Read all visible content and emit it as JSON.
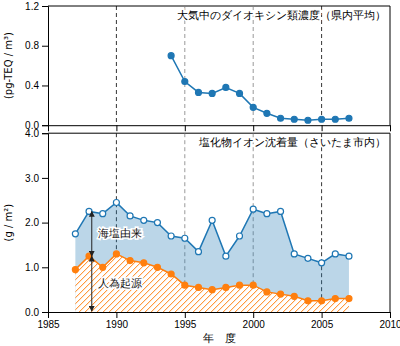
{
  "chart_data": [
    {
      "type": "line",
      "title": "大気中のダイオキシン類濃度（県内平均）",
      "y_label": "(pg-TEQ / m³)",
      "x": [
        1994,
        1995,
        1996,
        1997,
        1998,
        1999,
        2000,
        2001,
        2002,
        2003,
        2004,
        2005,
        2006,
        2007
      ],
      "values": [
        0.7,
        0.44,
        0.33,
        0.32,
        0.38,
        0.32,
        0.18,
        0.12,
        0.07,
        0.06,
        0.05,
        0.06,
        0.06,
        0.07
      ],
      "marker": "circle",
      "xlim": [
        1985,
        2010
      ],
      "xticks": [
        1985,
        1990,
        1995,
        2000,
        2005,
        2010
      ],
      "ylim": [
        0,
        1.2
      ],
      "yticks": [
        {
          "value": 0,
          "label": "0.0"
        },
        {
          "value": 0.4,
          "label": "0.4"
        },
        {
          "value": 0.8,
          "label": "0.8"
        },
        {
          "value": 1.2,
          "label": "1.2"
        }
      ],
      "tick_labels": "y",
      "vlines": [
        {
          "x": 1990,
          "color": "black"
        },
        {
          "x": 2005,
          "color": "black"
        },
        {
          "x": 1995,
          "color": "gray"
        },
        {
          "x": 2000,
          "color": "gray"
        }
      ]
    },
    {
      "type": "area",
      "title": "塩化物イオン沈着量（さいたま市内）",
      "x_label": "年　度",
      "y_label": "(g / m²)",
      "x": [
        1987,
        1988,
        1989,
        1990,
        1991,
        1992,
        1993,
        1994,
        1995,
        1996,
        1997,
        1998,
        1999,
        2000,
        2001,
        2002,
        2003,
        2004,
        2005,
        2006,
        2007
      ],
      "series": [
        {
          "values": [
            1.75,
            2.25,
            2.2,
            2.45,
            2.15,
            2.05,
            2.0,
            1.7,
            1.65,
            1.35,
            2.05,
            1.25,
            1.7,
            2.3,
            2.2,
            2.25,
            1.3,
            1.2,
            1.1,
            1.3,
            1.25
          ],
          "marker": "open-circle"
        },
        {
          "values": [
            0.95,
            1.25,
            1.0,
            1.3,
            1.15,
            1.1,
            1.0,
            0.85,
            0.6,
            0.55,
            0.5,
            0.55,
            0.6,
            0.6,
            0.45,
            0.4,
            0.35,
            0.25,
            0.25,
            0.3,
            0.3
          ],
          "marker": "circle"
        }
      ],
      "xlim": [
        1985,
        2010
      ],
      "xticks": [
        1985,
        1990,
        1995,
        2000,
        2005,
        2010
      ],
      "ylim": [
        0,
        4.0
      ],
      "yticks": [
        {
          "value": 0,
          "label": "0.0"
        },
        {
          "value": 1.0,
          "label": "1.0"
        },
        {
          "value": 2.0,
          "label": "2.0"
        },
        {
          "value": 3.0,
          "label": "3.0"
        },
        {
          "value": 4.0,
          "label": "4.0"
        }
      ],
      "vlines": [
        {
          "x": 1990,
          "color": "black"
        },
        {
          "x": 2005,
          "color": "black"
        },
        {
          "x": 1995,
          "color": "gray"
        },
        {
          "x": 2000,
          "color": "gray"
        }
      ],
      "annotations": [
        {
          "text": "海塩由来",
          "x": 1988.2,
          "y_from": 2.25,
          "y_to": 1.25
        },
        {
          "text": "人為起源",
          "x": 1988.2,
          "y_from": 1.25,
          "y_to": 0.02
        }
      ]
    }
  ]
}
